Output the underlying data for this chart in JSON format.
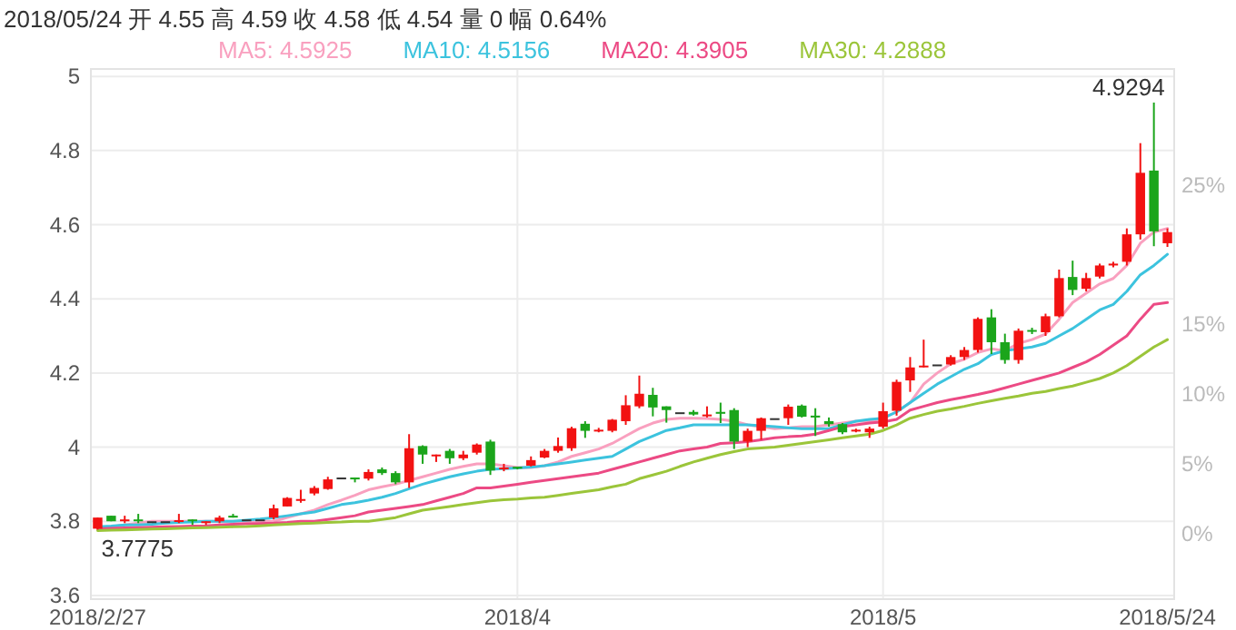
{
  "chart_data": {
    "type": "candlestick",
    "title": "2018/05/24 开 4.55 高 4.59 收 4.58 低 4.54 量 0 幅 0.64%",
    "categories": [
      "2018/2/27",
      null,
      null,
      null,
      null,
      null,
      null,
      null,
      null,
      null,
      null,
      null,
      null,
      null,
      null,
      null,
      null,
      null,
      null,
      null,
      null,
      null,
      null,
      null,
      null,
      null,
      null,
      null,
      null,
      null,
      null,
      "2018/4",
      null,
      null,
      null,
      null,
      null,
      null,
      null,
      null,
      null,
      null,
      null,
      null,
      null,
      null,
      null,
      null,
      null,
      null,
      null,
      null,
      null,
      null,
      null,
      null,
      null,
      null,
      "2018/5",
      null,
      null,
      null,
      null,
      null,
      null,
      null,
      null,
      null,
      null,
      null,
      null,
      null,
      null,
      null,
      null,
      null,
      null,
      null,
      null,
      "2018/5/24"
    ],
    "ohlc": [
      [
        3.78,
        3.81,
        3.7775,
        3.81
      ],
      [
        3.815,
        3.815,
        3.8,
        3.8
      ],
      [
        3.8,
        3.815,
        3.795,
        3.805
      ],
      [
        3.805,
        3.82,
        3.795,
        3.8
      ],
      [
        3.8,
        3.8,
        3.8,
        3.8
      ],
      [
        3.8,
        3.8,
        3.8,
        3.8
      ],
      [
        3.8,
        3.82,
        3.795,
        3.803
      ],
      [
        3.805,
        3.805,
        3.79,
        3.8
      ],
      [
        3.795,
        3.8,
        3.79,
        3.8
      ],
      [
        3.8,
        3.815,
        3.795,
        3.81
      ],
      [
        3.815,
        3.82,
        3.81,
        3.81
      ],
      [
        3.805,
        3.805,
        3.805,
        3.805
      ],
      [
        3.805,
        3.805,
        3.805,
        3.805
      ],
      [
        3.81,
        3.845,
        3.805,
        3.835
      ],
      [
        3.84,
        3.865,
        3.84,
        3.863
      ],
      [
        3.855,
        3.885,
        3.85,
        3.86
      ],
      [
        3.875,
        3.895,
        3.87,
        3.89
      ],
      [
        3.887,
        3.92,
        3.885,
        3.913
      ],
      [
        3.918,
        3.918,
        3.918,
        3.918
      ],
      [
        3.918,
        3.918,
        3.905,
        3.913
      ],
      [
        3.915,
        3.94,
        3.91,
        3.933
      ],
      [
        3.94,
        3.945,
        3.925,
        3.93
      ],
      [
        3.93,
        3.935,
        3.9,
        3.905
      ],
      [
        3.905,
        4.035,
        3.89,
        3.997
      ],
      [
        4.003,
        4.005,
        3.955,
        3.98
      ],
      [
        3.977,
        3.98,
        3.96,
        3.98
      ],
      [
        3.99,
        3.995,
        3.955,
        3.97
      ],
      [
        3.97,
        3.99,
        3.965,
        3.98
      ],
      [
        3.985,
        4.01,
        3.98,
        4.007
      ],
      [
        4.015,
        4.02,
        3.925,
        3.937
      ],
      [
        3.94,
        3.955,
        3.935,
        3.945
      ],
      [
        3.947,
        3.947,
        3.94,
        3.945
      ],
      [
        3.95,
        3.975,
        3.948,
        3.965
      ],
      [
        3.972,
        3.995,
        3.97,
        3.99
      ],
      [
        3.99,
        4.026,
        3.985,
        4.003
      ],
      [
        3.997,
        4.055,
        3.99,
        4.051
      ],
      [
        4.063,
        4.07,
        4.025,
        4.044
      ],
      [
        4.045,
        4.052,
        4.04,
        4.047
      ],
      [
        4.044,
        4.076,
        4.04,
        4.074
      ],
      [
        4.07,
        4.14,
        4.06,
        4.113
      ],
      [
        4.11,
        4.193,
        4.105,
        4.144
      ],
      [
        4.141,
        4.16,
        4.083,
        4.107
      ],
      [
        4.11,
        4.11,
        4.066,
        4.1
      ],
      [
        4.094,
        4.094,
        4.094,
        4.094
      ],
      [
        4.095,
        4.1,
        4.085,
        4.088
      ],
      [
        4.086,
        4.11,
        4.08,
        4.088
      ],
      [
        4.095,
        4.12,
        4.065,
        4.09
      ],
      [
        4.1,
        4.105,
        3.995,
        4.015
      ],
      [
        4.015,
        4.05,
        4.0,
        4.044
      ],
      [
        4.044,
        4.08,
        4.02,
        4.078
      ],
      [
        4.078,
        4.078,
        4.078,
        4.078
      ],
      [
        4.078,
        4.115,
        4.06,
        4.109
      ],
      [
        4.112,
        4.115,
        4.08,
        4.082
      ],
      [
        4.085,
        4.105,
        4.03,
        4.08
      ],
      [
        4.07,
        4.08,
        4.055,
        4.062
      ],
      [
        4.062,
        4.065,
        4.035,
        4.04
      ],
      [
        4.045,
        4.05,
        4.04,
        4.047
      ],
      [
        4.04,
        4.055,
        4.025,
        4.05
      ],
      [
        4.055,
        4.12,
        4.05,
        4.097
      ],
      [
        4.098,
        4.182,
        4.085,
        4.176
      ],
      [
        4.18,
        4.243,
        4.149,
        4.215
      ],
      [
        4.218,
        4.29,
        4.215,
        4.22
      ],
      [
        4.223,
        4.223,
        4.223,
        4.223
      ],
      [
        4.223,
        4.248,
        4.22,
        4.243
      ],
      [
        4.243,
        4.27,
        4.235,
        4.262
      ],
      [
        4.262,
        4.35,
        4.255,
        4.346
      ],
      [
        4.35,
        4.372,
        4.251,
        4.283
      ],
      [
        4.283,
        4.306,
        4.225,
        4.235
      ],
      [
        4.235,
        4.32,
        4.225,
        4.314
      ],
      [
        4.316,
        4.322,
        4.305,
        4.312
      ],
      [
        4.31,
        4.36,
        4.3,
        4.353
      ],
      [
        4.353,
        4.479,
        4.35,
        4.456
      ],
      [
        4.459,
        4.503,
        4.41,
        4.424
      ],
      [
        4.427,
        4.47,
        4.42,
        4.456
      ],
      [
        4.46,
        4.495,
        4.455,
        4.49
      ],
      [
        4.49,
        4.5,
        4.485,
        4.495
      ],
      [
        4.5,
        4.59,
        4.49,
        4.574
      ],
      [
        4.574,
        4.82,
        4.56,
        4.74
      ],
      [
        4.746,
        4.9294,
        4.542,
        4.582
      ],
      [
        4.55,
        4.59,
        4.54,
        4.58
      ]
    ],
    "colors": [
      "#f21212",
      "#1ba51b",
      "#f21212",
      "#1ba51b",
      "#333333",
      "#333333",
      "#f21212",
      "#1ba51b",
      "#f21212",
      "#f21212",
      "#1ba51b",
      "#333333",
      "#333333",
      "#f21212",
      "#f21212",
      "#f21212",
      "#f21212",
      "#f21212",
      "#333333",
      "#1ba51b",
      "#f21212",
      "#1ba51b",
      "#1ba51b",
      "#f21212",
      "#1ba51b",
      "#f21212",
      "#1ba51b",
      "#f21212",
      "#f21212",
      "#1ba51b",
      "#f21212",
      "#1ba51b",
      "#f21212",
      "#f21212",
      "#f21212",
      "#f21212",
      "#1ba51b",
      "#f21212",
      "#f21212",
      "#f21212",
      "#f21212",
      "#1ba51b",
      "#1ba51b",
      "#333333",
      "#1ba51b",
      "#f21212",
      "#1ba51b",
      "#1ba51b",
      "#f21212",
      "#f21212",
      "#333333",
      "#f21212",
      "#1ba51b",
      "#1ba51b",
      "#1ba51b",
      "#1ba51b",
      "#f21212",
      "#f21212",
      "#f21212",
      "#f21212",
      "#f21212",
      "#f21212",
      "#333333",
      "#f21212",
      "#f21212",
      "#f21212",
      "#1ba51b",
      "#1ba51b",
      "#f21212",
      "#1ba51b",
      "#f21212",
      "#f21212",
      "#1ba51b",
      "#f21212",
      "#f21212",
      "#f21212",
      "#f21212",
      "#f21212",
      "#1ba51b",
      "#f21212"
    ],
    "series": [
      {
        "type": "line",
        "name": "MA5: 4.5925",
        "color": "#f9a0bf",
        "values": [
          3.78,
          3.785,
          3.79,
          3.795,
          3.8,
          3.8,
          3.8,
          3.8,
          3.8,
          3.8,
          3.8,
          3.8,
          3.8,
          3.8,
          3.81,
          3.82,
          3.83,
          3.845,
          3.857,
          3.87,
          3.885,
          3.893,
          3.9,
          3.91,
          3.92,
          3.93,
          3.94,
          3.948,
          3.955,
          3.955,
          3.95,
          3.945,
          3.945,
          3.95,
          3.96,
          3.975,
          3.985,
          3.995,
          4.01,
          4.03,
          4.05,
          4.065,
          4.075,
          4.078,
          4.078,
          4.077,
          4.075,
          4.07,
          4.06,
          4.055,
          4.05,
          4.052,
          4.055,
          4.055,
          4.06,
          4.065,
          4.07,
          4.07,
          4.078,
          4.095,
          4.12,
          4.17,
          4.2,
          4.225,
          4.237,
          4.255,
          4.265,
          4.26,
          4.28,
          4.29,
          4.305,
          4.345,
          4.39,
          4.415,
          4.44,
          4.455,
          4.49,
          4.55,
          4.58,
          4.59
        ]
      },
      {
        "type": "line",
        "name": "MA10: 4.5156",
        "color": "#3cc3de",
        "values": [
          3.785,
          3.787,
          3.79,
          3.79,
          3.792,
          3.795,
          3.797,
          3.798,
          3.8,
          3.8,
          3.8,
          3.803,
          3.806,
          3.81,
          3.815,
          3.82,
          3.825,
          3.835,
          3.845,
          3.85,
          3.857,
          3.865,
          3.875,
          3.888,
          3.9,
          3.91,
          3.92,
          3.928,
          3.935,
          3.94,
          3.942,
          3.944,
          3.946,
          3.95,
          3.955,
          3.96,
          3.965,
          3.97,
          3.975,
          3.995,
          4.015,
          4.03,
          4.045,
          4.052,
          4.06,
          4.06,
          4.06,
          4.06,
          4.06,
          4.058,
          4.055,
          4.052,
          4.05,
          4.05,
          4.05,
          4.06,
          4.07,
          4.075,
          4.078,
          4.095,
          4.12,
          4.145,
          4.17,
          4.19,
          4.21,
          4.225,
          4.25,
          4.26,
          4.265,
          4.27,
          4.28,
          4.3,
          4.32,
          4.345,
          4.37,
          4.385,
          4.42,
          4.465,
          4.49,
          4.52
        ]
      },
      {
        "type": "line",
        "name": "MA20: 4.3905",
        "color": "#ec4a84",
        "values": [
          3.78,
          3.781,
          3.782,
          3.783,
          3.784,
          3.785,
          3.786,
          3.787,
          3.788,
          3.79,
          3.792,
          3.793,
          3.794,
          3.795,
          3.797,
          3.8,
          3.8,
          3.805,
          3.81,
          3.815,
          3.825,
          3.83,
          3.835,
          3.84,
          3.845,
          3.855,
          3.865,
          3.875,
          3.89,
          3.89,
          3.895,
          3.9,
          3.905,
          3.91,
          3.915,
          3.92,
          3.925,
          3.93,
          3.94,
          3.95,
          3.96,
          3.97,
          3.98,
          3.99,
          3.995,
          4.0,
          4.01,
          4.012,
          4.015,
          4.02,
          4.025,
          4.028,
          4.03,
          4.035,
          4.045,
          4.055,
          4.06,
          4.065,
          4.068,
          4.075,
          4.1,
          4.11,
          4.12,
          4.128,
          4.135,
          4.142,
          4.15,
          4.16,
          4.17,
          4.18,
          4.19,
          4.2,
          4.215,
          4.23,
          4.25,
          4.275,
          4.3,
          4.345,
          4.385,
          4.39
        ]
      },
      {
        "type": "line",
        "name": "MA30: 4.2888",
        "color": "#9bc53a",
        "values": [
          3.775,
          3.776,
          3.777,
          3.778,
          3.779,
          3.78,
          3.781,
          3.782,
          3.783,
          3.784,
          3.785,
          3.786,
          3.788,
          3.79,
          3.792,
          3.794,
          3.795,
          3.797,
          3.798,
          3.8,
          3.8,
          3.805,
          3.81,
          3.82,
          3.83,
          3.835,
          3.84,
          3.845,
          3.85,
          3.855,
          3.858,
          3.86,
          3.863,
          3.865,
          3.87,
          3.875,
          3.88,
          3.885,
          3.893,
          3.9,
          3.915,
          3.925,
          3.935,
          3.948,
          3.96,
          3.97,
          3.98,
          3.988,
          3.995,
          3.998,
          4.0,
          4.005,
          4.01,
          4.015,
          4.02,
          4.025,
          4.03,
          4.035,
          4.045,
          4.06,
          4.078,
          4.088,
          4.097,
          4.103,
          4.11,
          4.118,
          4.125,
          4.132,
          4.138,
          4.145,
          4.15,
          4.158,
          4.165,
          4.175,
          4.185,
          4.2,
          4.22,
          4.245,
          4.27,
          4.29
        ]
      }
    ],
    "ylim": [
      3.59,
      5.02
    ],
    "yticks": [
      3.6,
      3.8,
      4,
      4.2,
      4.4,
      4.6,
      4.8,
      5
    ],
    "y2lim": [
      -4.7,
      33.3
    ],
    "y2ticks": [
      {
        "value": 0,
        "label": "0%"
      },
      {
        "value": 5,
        "label": "5%"
      },
      {
        "value": 10,
        "label": "10%"
      },
      {
        "value": 15,
        "label": "15%"
      },
      {
        "value": 25,
        "label": "25%"
      }
    ],
    "annotations": [
      "3.7775",
      "4.9294"
    ],
    "grid": true,
    "legend": "top"
  }
}
